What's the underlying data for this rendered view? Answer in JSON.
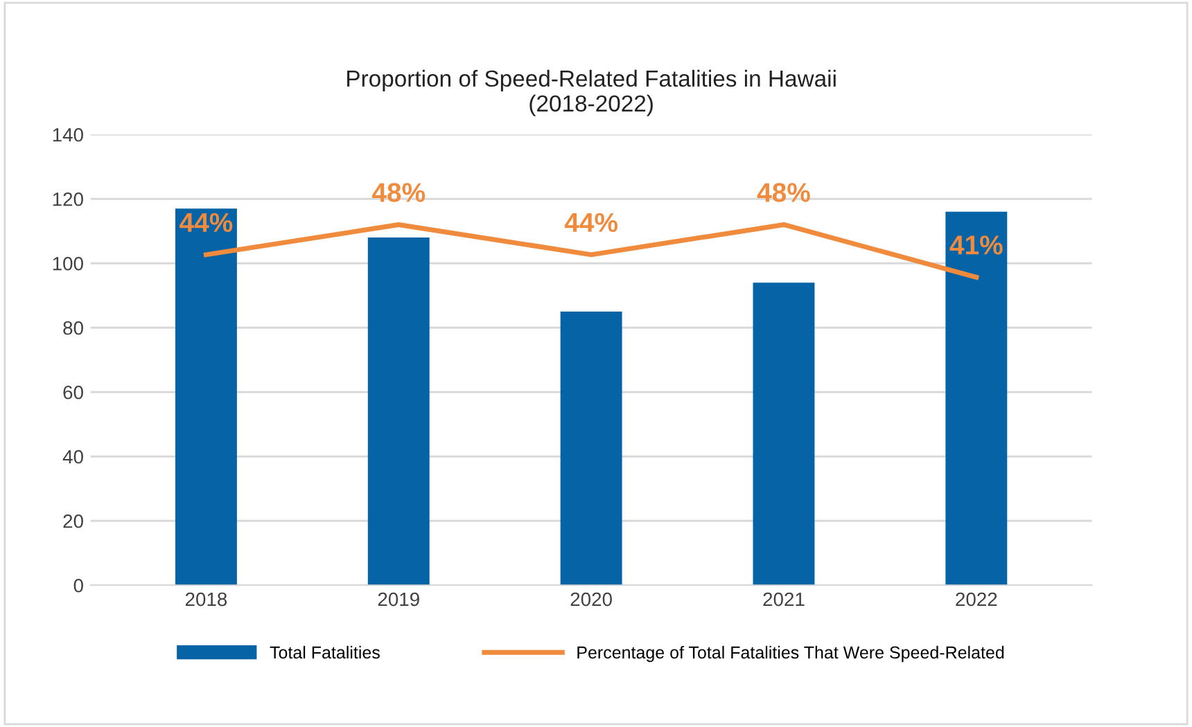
{
  "chart_data": {
    "type": "bar",
    "title": "Proportion of Speed-Related Fatalities in Hawaii\n(2018-2022)",
    "categories": [
      "2018",
      "2019",
      "2020",
      "2021",
      "2022"
    ],
    "series": [
      {
        "name": "Total Fatalities",
        "color": "#0563a6",
        "values": [
          117,
          108,
          85,
          94,
          116
        ]
      },
      {
        "name": "Percentage of Total Fatalities That Were Speed-Related",
        "type": "line",
        "axis": "y2",
        "color": "#f08a3c",
        "values": [
          44,
          48,
          44,
          48,
          41
        ],
        "value_labels": [
          "44%",
          "48%",
          "44%",
          "48%",
          "41%"
        ]
      }
    ],
    "ylim": [
      0,
      140
    ],
    "yticks": [
      0,
      20,
      40,
      60,
      80,
      100,
      120,
      140
    ],
    "y2lim": [
      0,
      60
    ],
    "grid": "y",
    "legend": "bottom",
    "tick_labels": "xy"
  }
}
